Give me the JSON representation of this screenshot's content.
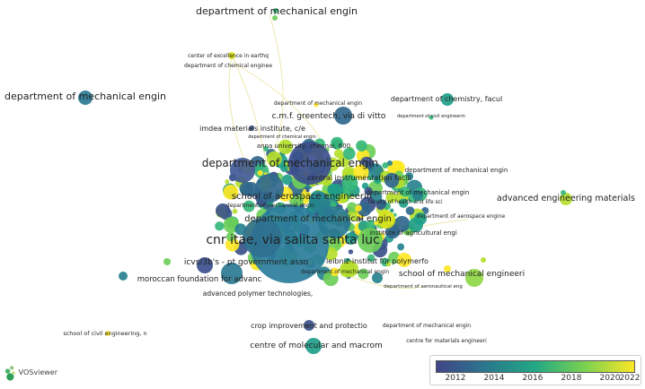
{
  "app": {
    "name": "VOSviewer"
  },
  "legend": {
    "ticks": [
      "2012",
      "2014",
      "2016",
      "2018",
      "2020",
      "2022"
    ]
  },
  "labels": [
    "department of mechanical engin",
    "center of excellence in earthq",
    "department of chemical enginee",
    "department of mechanical engin",
    "department of mechanical engin",
    "department of chemistry, facul",
    "department of civil engineerin",
    "c.m.f. greentech, via di vitto",
    "imdea materials institute, c/e",
    "department of chemical engin",
    "anna university, chennai, 600",
    "department of mechanical engin",
    "department of mechanical engin",
    "central instrumentation facili",
    "advanced engineering materials",
    "school of aerospace engineerin",
    "department of mechanical engin",
    "faculty of health and life sci",
    "department of mechanical engin",
    "department of aerospace engine",
    "department of mechanical engin",
    "institute of agricultural engi",
    "cnr itae, via salita santa luc",
    "icvs/3b's - pt government asso",
    "leibniz-institut für polymerfo",
    "department of mechanical engin",
    "school of mechanical engineeri",
    "moroccan foundation for advanc",
    "department of aeronautical eng",
    "advanced polymer technologies,",
    "crop improvement and protectio",
    "department of mechanical engin",
    "school of civil engineering, n",
    "centre for materials engineeri",
    "centre of molecular and macrom"
  ]
}
